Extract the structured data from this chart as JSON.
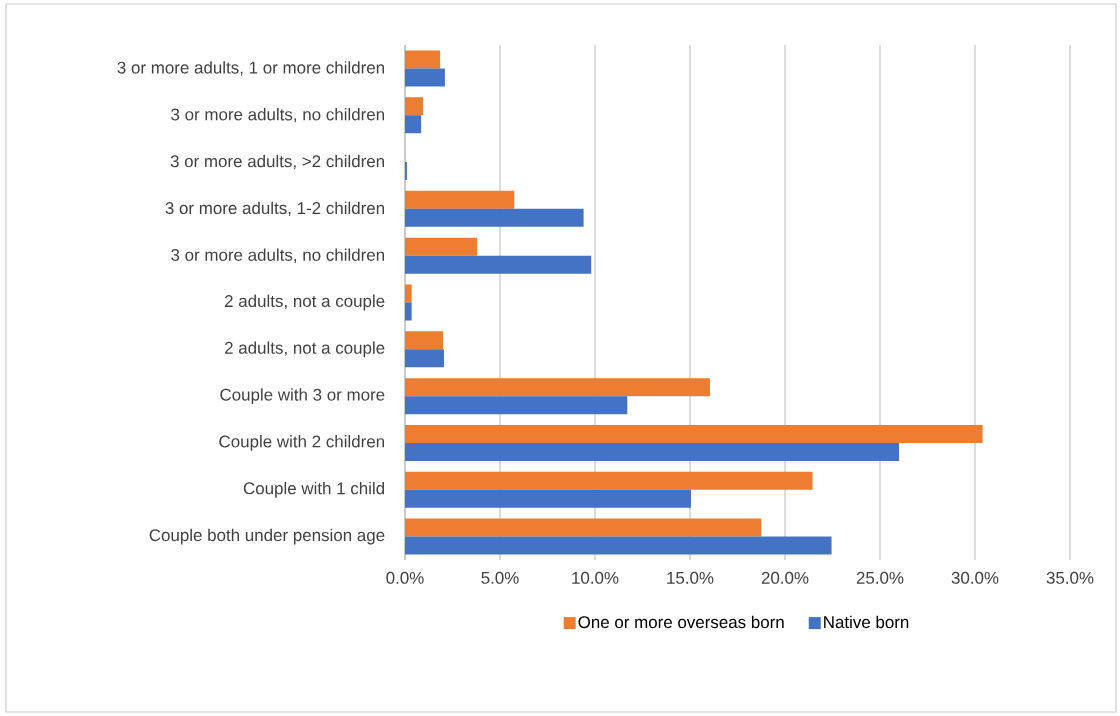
{
  "chart_data": {
    "type": "bar",
    "orientation": "horizontal",
    "categories": [
      "3 or more adults, 1 or more children",
      "3 or more adults, no children",
      "3 or more adults, >2 children",
      "3 or more adults, 1-2 children",
      "3 or more adults, no children",
      "2 adults, not a couple",
      "2 adults, not a couple",
      "Couple with 3 or more",
      "Couple with 2 children",
      "Couple with 1 child",
      "Couple both under pension age"
    ],
    "series": [
      {
        "name": "One or more overseas born",
        "color": "#ed7d31",
        "values": [
          1.85,
          0.95,
          null,
          5.75,
          3.8,
          0.35,
          2.0,
          16.05,
          30.4,
          21.45,
          18.75
        ]
      },
      {
        "name": "Native born",
        "color": "#4472c4",
        "values": [
          2.1,
          0.85,
          0.1,
          9.4,
          9.8,
          0.35,
          2.05,
          11.7,
          26.0,
          15.05,
          22.45
        ]
      }
    ],
    "xlim": [
      0,
      35
    ],
    "xticks": [
      {
        "value": 0,
        "label": "0.0%"
      },
      {
        "value": 5,
        "label": "5.0%"
      },
      {
        "value": 10,
        "label": "10.0%"
      },
      {
        "value": 15,
        "label": "15.0%"
      },
      {
        "value": 20,
        "label": "20.0%"
      },
      {
        "value": 25,
        "label": "25.0%"
      },
      {
        "value": 30,
        "label": "30.0%"
      },
      {
        "value": 35,
        "label": "35.0%"
      }
    ],
    "grid": "x",
    "legend": "bottom"
  }
}
